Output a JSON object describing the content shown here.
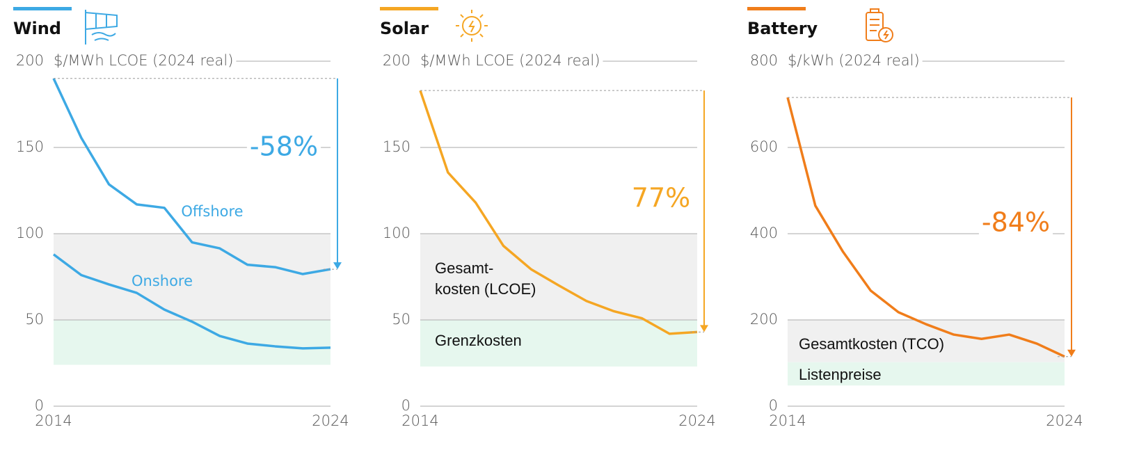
{
  "chart_data": [
    {
      "type": "line",
      "title": "Wind",
      "color": "#3da9e4",
      "y_label": "$/MWh LCOE (2024 real)",
      "x": [
        2014,
        2015,
        2016,
        2017,
        2018,
        2019,
        2020,
        2021,
        2022,
        2023,
        2024
      ],
      "xlim": [
        2014,
        2024
      ],
      "xticks": [
        2014,
        2024
      ],
      "ylim": [
        0,
        200
      ],
      "yticks": [
        0,
        50,
        100,
        150,
        200
      ],
      "series": [
        {
          "name": "Offshore",
          "color": "#3da9e4",
          "values": [
            190,
            155.6,
            128.6,
            117,
            115,
            95,
            91.5,
            82,
            80.6,
            76.6,
            79.4
          ]
        },
        {
          "name": "Onshore",
          "color": "#3da9e4",
          "values": [
            88,
            76,
            70.6,
            65.7,
            56,
            49,
            40.7,
            36.3,
            34.7,
            33.5,
            33.9
          ]
        }
      ],
      "bands": [
        {
          "range": [
            50,
            100
          ],
          "color": "#f0f0f0"
        },
        {
          "range": [
            24,
            50
          ],
          "color": "#e6f7ee"
        }
      ],
      "annotation": "-58%"
    },
    {
      "type": "line",
      "title": "Solar",
      "color": "#f5a623",
      "y_label": "$/MWh LCOE (2024 real)",
      "x": [
        2014,
        2015,
        2016,
        2017,
        2018,
        2019,
        2020,
        2021,
        2022,
        2023,
        2024
      ],
      "xlim": [
        2014,
        2024
      ],
      "xticks": [
        2014,
        2024
      ],
      "ylim": [
        0,
        200
      ],
      "yticks": [
        0,
        50,
        100,
        150,
        200
      ],
      "series": [
        {
          "name": "Solar",
          "color": "#f5a623",
          "values": [
            183,
            135.5,
            118,
            93,
            79.4,
            70,
            61,
            55,
            51,
            42,
            43
          ]
        }
      ],
      "bands": [
        {
          "range": [
            50,
            100
          ],
          "color": "#f0f0f0",
          "label": [
            "Gesamt-",
            "kosten (LCOE)"
          ]
        },
        {
          "range": [
            23,
            50
          ],
          "color": "#e6f7ee",
          "label": [
            "Grenzkosten"
          ]
        }
      ],
      "annotation": "77%"
    },
    {
      "type": "line",
      "title": "Battery",
      "color": "#f07d1a",
      "y_label": "$/kWh (2024 real)",
      "x": [
        2014,
        2015,
        2016,
        2017,
        2018,
        2019,
        2020,
        2021,
        2022,
        2023,
        2024
      ],
      "xlim": [
        2014,
        2024
      ],
      "xticks": [
        2014,
        2024
      ],
      "ylim": [
        0,
        800
      ],
      "yticks": [
        0,
        200,
        400,
        600,
        800
      ],
      "series": [
        {
          "name": "Battery",
          "color": "#f07d1a",
          "values": [
            716,
            465,
            358,
            268,
            218,
            190,
            166,
            156,
            166,
            145,
            115
          ]
        }
      ],
      "bands": [
        {
          "range": [
            102,
            200
          ],
          "color": "#f0f0f0",
          "label": [
            "Gesamtkosten (TCO)"
          ]
        },
        {
          "range": [
            48,
            102
          ],
          "color": "#e6f7ee",
          "label": [
            "Listenpreise"
          ]
        }
      ],
      "annotation": "-84%"
    }
  ]
}
